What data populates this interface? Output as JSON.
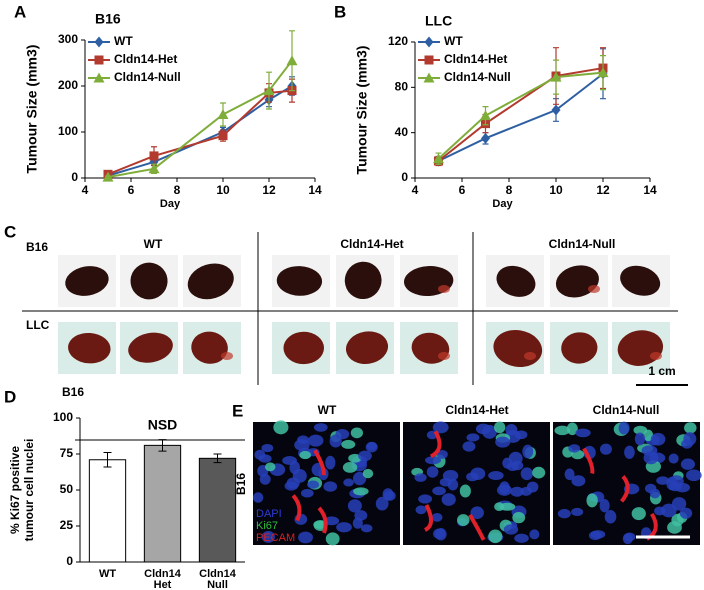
{
  "panel_labels": [
    "A",
    "B",
    "C",
    "D",
    "E"
  ],
  "chart_data": [
    {
      "type": "line",
      "title": "B16",
      "xlabel": "Day",
      "ylabel": "Tumour Size (mm3)",
      "x": [
        5,
        7,
        10,
        12,
        13
      ],
      "xlim": [
        4,
        14
      ],
      "xticks": [
        4,
        6,
        8,
        10,
        12,
        14
      ],
      "ylim": [
        0,
        300
      ],
      "yticks": [
        0,
        100,
        200,
        300
      ],
      "series": [
        {
          "name": "WT",
          "color": "#2e5fa3",
          "marker": "diamond",
          "values": [
            5,
            35,
            100,
            170,
            200
          ],
          "errors": [
            3,
            8,
            10,
            15,
            20
          ]
        },
        {
          "name": "Cldn14-Het",
          "color": "#b23a2e",
          "marker": "square",
          "values": [
            8,
            48,
            92,
            185,
            190
          ],
          "errors": [
            4,
            20,
            12,
            20,
            25
          ]
        },
        {
          "name": "Cldn14-Null",
          "color": "#7fad3a",
          "marker": "triangle",
          "values": [
            2,
            20,
            138,
            190,
            255
          ],
          "errors": [
            2,
            10,
            25,
            40,
            65
          ]
        }
      ]
    },
    {
      "type": "line",
      "title": "LLC",
      "xlabel": "Day",
      "ylabel": "Tumour Size (mm3)",
      "x": [
        5,
        7,
        10,
        12
      ],
      "xlim": [
        4,
        14
      ],
      "xticks": [
        4,
        6,
        8,
        10,
        12,
        14
      ],
      "ylim": [
        0,
        120
      ],
      "yticks": [
        0,
        40,
        80,
        120
      ],
      "series": [
        {
          "name": "WT",
          "color": "#2e5fa3",
          "marker": "diamond",
          "values": [
            15,
            35,
            60,
            92
          ],
          "errors": [
            3,
            5,
            10,
            22
          ]
        },
        {
          "name": "Cldn14-Het",
          "color": "#b23a2e",
          "marker": "square",
          "values": [
            15,
            48,
            90,
            97
          ],
          "errors": [
            4,
            8,
            25,
            18
          ]
        },
        {
          "name": "Cldn14-Null",
          "color": "#7fad3a",
          "marker": "triangle",
          "values": [
            17,
            55,
            89,
            93
          ],
          "errors": [
            5,
            8,
            15,
            15
          ]
        }
      ]
    },
    {
      "type": "bar",
      "title": "B16",
      "ylabel": [
        "% Ki67 positive",
        "tumour cell nuclei"
      ],
      "categories": [
        [
          "WT"
        ],
        [
          "Cldn14",
          "Het"
        ],
        [
          "Cldn14",
          "Null"
        ]
      ],
      "values": [
        71,
        81,
        72
      ],
      "errors": [
        5,
        4,
        3
      ],
      "colors": [
        "#ffffff",
        "#a6a6a6",
        "#595959"
      ],
      "ylim": [
        0,
        100
      ],
      "yticks": [
        0,
        25,
        50,
        75,
        100
      ],
      "annotation": "NSD"
    }
  ],
  "panel_c": {
    "row_labels": [
      "B16",
      "LLC"
    ],
    "column_labels": [
      "WT",
      "Cldn14-Het",
      "Cldn14-Null"
    ],
    "scale_bar": "1 cm"
  },
  "panel_e": {
    "row_label": "B16",
    "column_labels": [
      "WT",
      "Cldn14-Het",
      "Cldn14-Null"
    ],
    "channels": [
      {
        "name": "DAPI",
        "color": "#2d3bd6"
      },
      {
        "name": "Ki67",
        "color": "#2fbf3a"
      },
      {
        "name": "PECAM",
        "color": "#d62020"
      }
    ]
  }
}
